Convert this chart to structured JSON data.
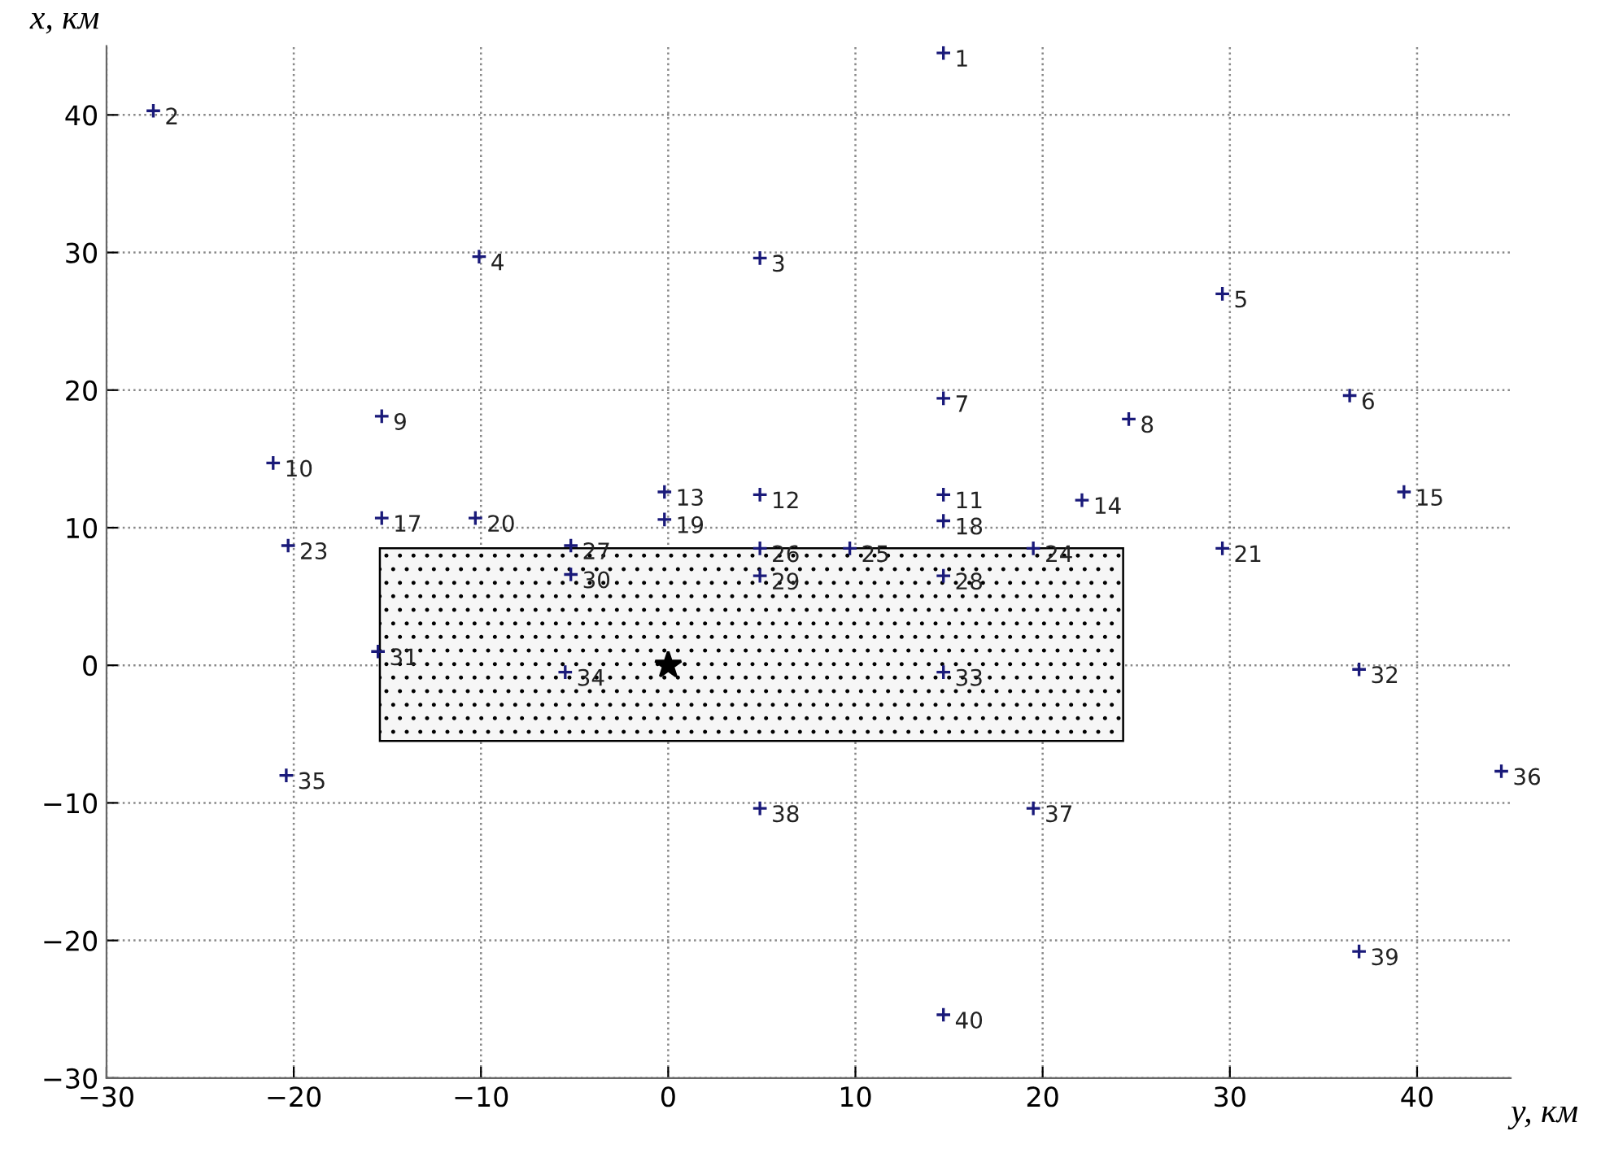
{
  "chart_data": {
    "type": "scatter",
    "xlabel": "y, км",
    "ylabel": "x, км",
    "xlim": [
      -30,
      45
    ],
    "ylim": [
      -30,
      45
    ],
    "xticks": [
      -30,
      -20,
      -10,
      0,
      10,
      20,
      30,
      40
    ],
    "yticks": [
      -30,
      -20,
      -10,
      0,
      10,
      20,
      30,
      40
    ],
    "grid": true,
    "series": [
      {
        "type": "area",
        "color": "#000000",
        "x": [
          -15.4,
          24.3,
          24.3,
          -15.4,
          -15.4
        ],
        "values": [
          8.5,
          8.5,
          -5.5,
          -5.5,
          8.5
        ]
      },
      {
        "marker": "cross",
        "color": "#1a1a7a",
        "x": [
          14.7,
          -27.5,
          4.9,
          -10.1,
          29.6,
          36.4,
          14.7,
          24.6,
          -15.3,
          -21.1,
          14.7,
          4.9,
          -0.2,
          22.1,
          39.3,
          -15.3,
          14.7,
          -0.2,
          -10.3,
          29.6,
          -20.3,
          19.5,
          9.7,
          4.9,
          -5.2,
          14.7,
          4.9,
          -5.2,
          -15.5,
          36.9,
          14.7,
          -5.5,
          -20.4,
          44.5,
          19.5,
          4.9,
          36.9,
          14.7
        ],
        "values": [
          44.5,
          40.3,
          29.6,
          29.7,
          27.0,
          19.6,
          19.4,
          17.9,
          18.1,
          14.7,
          12.4,
          12.4,
          12.6,
          12.0,
          12.6,
          10.7,
          10.5,
          10.6,
          10.7,
          8.5,
          8.7,
          8.5,
          8.5,
          8.5,
          8.7,
          6.5,
          6.5,
          6.6,
          1.0,
          -0.3,
          -0.5,
          -0.5,
          -8.0,
          -7.7,
          -10.4,
          -10.4,
          -20.8,
          -25.4
        ]
      },
      {
        "marker": "star",
        "color": "#000000",
        "x": [
          0
        ],
        "values": [
          0
        ]
      }
    ],
    "annotations": [
      {
        "text": "1",
        "x": 14.7,
        "y": 44.5
      },
      {
        "text": "2",
        "x": -27.5,
        "y": 40.3
      },
      {
        "text": "3",
        "x": 4.9,
        "y": 29.6
      },
      {
        "text": "4",
        "x": -10.1,
        "y": 29.7
      },
      {
        "text": "5",
        "x": 29.6,
        "y": 27.0
      },
      {
        "text": "6",
        "x": 36.4,
        "y": 19.6
      },
      {
        "text": "7",
        "x": 14.7,
        "y": 19.4
      },
      {
        "text": "8",
        "x": 24.6,
        "y": 17.9
      },
      {
        "text": "9",
        "x": -15.3,
        "y": 18.1
      },
      {
        "text": "10",
        "x": -21.1,
        "y": 14.7
      },
      {
        "text": "11",
        "x": 14.7,
        "y": 12.4
      },
      {
        "text": "12",
        "x": 4.9,
        "y": 12.4
      },
      {
        "text": "13",
        "x": -0.2,
        "y": 12.6
      },
      {
        "text": "14",
        "x": 22.1,
        "y": 12.0
      },
      {
        "text": "15",
        "x": 39.3,
        "y": 12.6
      },
      {
        "text": "17",
        "x": -15.3,
        "y": 10.7
      },
      {
        "text": "18",
        "x": 14.7,
        "y": 10.5
      },
      {
        "text": "19",
        "x": -0.2,
        "y": 10.6
      },
      {
        "text": "20",
        "x": -10.3,
        "y": 10.7
      },
      {
        "text": "21",
        "x": 29.6,
        "y": 8.5
      },
      {
        "text": "23",
        "x": -20.3,
        "y": 8.7
      },
      {
        "text": "24",
        "x": 19.5,
        "y": 8.5
      },
      {
        "text": "25",
        "x": 9.7,
        "y": 8.5
      },
      {
        "text": "26",
        "x": 4.9,
        "y": 8.5
      },
      {
        "text": "27",
        "x": -5.2,
        "y": 8.7
      },
      {
        "text": "28",
        "x": 14.7,
        "y": 6.5
      },
      {
        "text": "29",
        "x": 4.9,
        "y": 6.5
      },
      {
        "text": "30",
        "x": -5.2,
        "y": 6.6
      },
      {
        "text": "31",
        "x": -15.5,
        "y": 1.0
      },
      {
        "text": "32",
        "x": 36.9,
        "y": -0.3
      },
      {
        "text": "33",
        "x": 14.7,
        "y": -0.5
      },
      {
        "text": "34",
        "x": -5.5,
        "y": -0.5
      },
      {
        "text": "35",
        "x": -20.4,
        "y": -8.0
      },
      {
        "text": "36",
        "x": 44.5,
        "y": -7.7
      },
      {
        "text": "37",
        "x": 19.5,
        "y": -10.4
      },
      {
        "text": "38",
        "x": 4.9,
        "y": -10.4
      },
      {
        "text": "39",
        "x": 36.9,
        "y": -20.8
      },
      {
        "text": "40",
        "x": 14.7,
        "y": -25.4
      }
    ]
  }
}
